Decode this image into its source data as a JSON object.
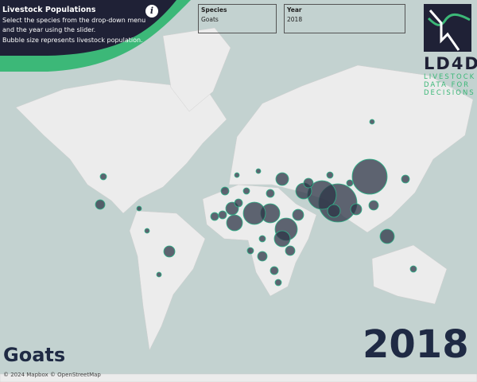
{
  "header": {
    "title": "Livestock Populations",
    "lines": [
      "Select the species from the drop-down menu",
      "and the year using the slider.",
      "Bubble size represents livestock population."
    ],
    "info_icon": "info-icon"
  },
  "filters": {
    "species": {
      "label": "Species",
      "value": "Goats"
    },
    "year": {
      "label": "Year",
      "value": "2018"
    }
  },
  "logo": {
    "name": "LD4D",
    "tagline": [
      "LIVESTOCK",
      "DATA FOR",
      "DECISIONS"
    ]
  },
  "overlay": {
    "species": "Goats",
    "year": "2018"
  },
  "attribution": "© 2024 Mapbox © OpenStreetMap",
  "colors": {
    "header": "#1f2136",
    "accent": "#3cb878",
    "bubble": "#2e3547",
    "bubble_outline": "#2fb58a",
    "ocean": "#c3d2d0",
    "land": "#ececec"
  }
}
